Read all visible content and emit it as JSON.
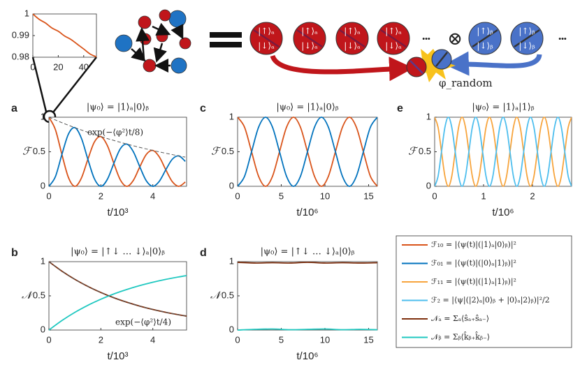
{
  "chart_data": [
    {
      "type": "line",
      "x": [
        0,
        5,
        10,
        15,
        20,
        25,
        30,
        35,
        40,
        45,
        50
      ],
      "series": [
        {
          "color": "#d95319",
          "values": [
            1,
            0.9975,
            0.9958,
            0.9935,
            0.992,
            0.9898,
            0.9882,
            0.986,
            0.9838,
            0.9815,
            0.9802
          ]
        }
      ],
      "xlim": [
        0,
        50
      ],
      "xticks": [
        0,
        20,
        40
      ],
      "ylim": [
        0.98,
        1
      ],
      "yticks": [
        0.98,
        0.99,
        1
      ]
    },
    {
      "type": "line",
      "label": "a",
      "title": "|ψ₀⟩ = |1⟩ₐ|0⟩ᵦ",
      "ylabel": "ℱ",
      "xlabel": "t/10³",
      "annotation": "exp(−⟨φ²⟩t/8)",
      "x": [
        0,
        0.25,
        0.5,
        0.75,
        1,
        1.25,
        1.5,
        1.75,
        2,
        2.25,
        2.5,
        2.75,
        3,
        3.25,
        3.5,
        3.75,
        4,
        4.25,
        4.5,
        4.75,
        5,
        5.25
      ],
      "series": [
        {
          "color": "#d95319",
          "values": [
            1,
            0.82,
            0.461,
            0.129,
            0,
            0.119,
            0.391,
            0.641,
            0.72,
            0.59,
            0.332,
            0.093,
            0,
            0.086,
            0.282,
            0.462,
            0.519,
            0.425,
            0.239,
            0.067,
            0,
            0.062
          ]
        },
        {
          "color": "#0072bd",
          "values": [
            0,
            0.14,
            0.461,
            0.755,
            0.849,
            0.696,
            0.391,
            0.11,
            0,
            0.101,
            0.332,
            0.544,
            0.611,
            0.501,
            0.282,
            0.079,
            0,
            0.073,
            0.239,
            0.392,
            0.44,
            0.361
          ]
        }
      ],
      "envelope": {
        "color": "#555555",
        "values": [
          1,
          0.96,
          0.921,
          0.884,
          0.849,
          0.815,
          0.782,
          0.751,
          0.72,
          0.691,
          0.664,
          0.637,
          0.611,
          0.587,
          0.563,
          0.541,
          0.519,
          0.498,
          0.478,
          0.459,
          0.44,
          0.423
        ]
      },
      "xlim": [
        0,
        5.3
      ],
      "xticks": [
        0,
        2,
        4
      ],
      "ylim": [
        0,
        1
      ],
      "yticks": [
        0,
        0.5,
        1
      ]
    },
    {
      "type": "line",
      "label": "b",
      "title": "|ψ₀⟩ = |↑↓ … ↓⟩ₐ|0⟩ᵦ",
      "ylabel": "𝒩",
      "xlabel": "t/10³",
      "annotation": "exp(−⟨φ²⟩t/4)",
      "x": [
        0,
        0.5,
        1,
        1.5,
        2,
        2.5,
        3,
        3.5,
        4,
        4.5,
        5,
        5.3
      ],
      "series": [
        {
          "color": "#7e2f0e",
          "values": [
            1,
            0.861,
            0.741,
            0.638,
            0.549,
            0.472,
            0.407,
            0.35,
            0.301,
            0.259,
            0.223,
            0.204
          ]
        },
        {
          "color": "#1fc8c0",
          "values": [
            0,
            0.139,
            0.259,
            0.362,
            0.451,
            0.528,
            0.593,
            0.65,
            0.699,
            0.741,
            0.777,
            0.796
          ]
        }
      ],
      "envelope": {
        "color": "#555555",
        "values": [
          1,
          0.861,
          0.741,
          0.638,
          0.549,
          0.472,
          0.407,
          0.35,
          0.301,
          0.259,
          0.223,
          0.204
        ]
      },
      "xlim": [
        0,
        5.3
      ],
      "xticks": [
        0,
        2,
        4
      ],
      "ylim": [
        0,
        1
      ],
      "yticks": [
        0,
        0.5,
        1
      ]
    },
    {
      "type": "line",
      "label": "c",
      "title": "|ψ₀⟩ = |1⟩ₐ|0⟩ᵦ",
      "ylabel": "ℱ",
      "xlabel": "t/10⁶",
      "x": [
        0,
        0.8,
        1.6,
        2.4,
        3.2,
        4,
        4.8,
        5.6,
        6.4,
        7.2,
        8,
        8.8,
        9.6,
        10.4,
        11.2,
        12,
        12.8,
        13.6,
        14.4,
        15.2,
        16
      ],
      "series": [
        {
          "color": "#d95319",
          "values": [
            1,
            0.854,
            0.5,
            0.146,
            0,
            0.146,
            0.5,
            0.854,
            1,
            0.854,
            0.5,
            0.146,
            0,
            0.146,
            0.5,
            0.854,
            1,
            0.854,
            0.5,
            0.146,
            0
          ]
        },
        {
          "color": "#0072bd",
          "values": [
            0,
            0.146,
            0.5,
            0.854,
            1,
            0.854,
            0.5,
            0.146,
            0,
            0.146,
            0.5,
            0.854,
            1,
            0.854,
            0.5,
            0.146,
            0,
            0.146,
            0.5,
            0.854,
            1
          ]
        }
      ],
      "xlim": [
        0,
        16
      ],
      "xticks": [
        0,
        5,
        10,
        15
      ],
      "ylim": [
        0,
        1
      ],
      "yticks": [
        0,
        0.5,
        1
      ]
    },
    {
      "type": "line",
      "label": "d",
      "title": "|ψ₀⟩ = |↑↓ … ↓⟩ₐ|0⟩ᵦ",
      "ylabel": "𝒩",
      "xlabel": "t/10⁶",
      "x": [
        0,
        2,
        4,
        6,
        8,
        10,
        12,
        14,
        16
      ],
      "series": [
        {
          "color": "#7e2f0e",
          "values": [
            0.99,
            0.98,
            0.985,
            0.98,
            0.99,
            0.98,
            0.985,
            0.98,
            0.985
          ]
        },
        {
          "color": "#1fc8c0",
          "values": [
            0,
            0.01,
            0.015,
            0.005,
            0.01,
            0.015,
            0.005,
            0.01,
            0.005
          ]
        }
      ],
      "xlim": [
        0,
        16
      ],
      "xticks": [
        0,
        5,
        10,
        15
      ],
      "ylim": [
        0,
        1
      ],
      "yticks": [
        0,
        0.5,
        1
      ]
    },
    {
      "type": "line",
      "label": "e",
      "title": "|ψ₀⟩ = |1⟩ₐ|1⟩ᵦ",
      "ylabel": "ℱ",
      "xlabel": "t/10⁶",
      "x": [
        0,
        0.07,
        0.14,
        0.21,
        0.28,
        0.35,
        0.42,
        0.49,
        0.56,
        0.63,
        0.7,
        0.77,
        0.84,
        0.91,
        0.98,
        1.05,
        1.12,
        1.19,
        1.26,
        1.33,
        1.4,
        1.47,
        1.54,
        1.61,
        1.68,
        1.75,
        1.82,
        1.89,
        1.96,
        2.03,
        2.1,
        2.17,
        2.24,
        2.31,
        2.38,
        2.45,
        2.52,
        2.59,
        2.66,
        2.73,
        2.8
      ],
      "series": [
        {
          "color": "#f7a43c",
          "values": [
            1,
            0.854,
            0.5,
            0.146,
            0,
            0.146,
            0.5,
            0.854,
            1,
            0.854,
            0.5,
            0.146,
            0,
            0.146,
            0.5,
            0.854,
            1,
            0.854,
            0.5,
            0.146,
            0,
            0.146,
            0.5,
            0.854,
            1,
            0.854,
            0.5,
            0.146,
            0,
            0.146,
            0.5,
            0.854,
            1,
            0.854,
            0.5,
            0.146,
            0,
            0.146,
            0.5,
            0.854,
            1
          ]
        },
        {
          "color": "#4dbeee",
          "values": [
            0,
            0.146,
            0.5,
            0.854,
            1,
            0.854,
            0.5,
            0.146,
            0,
            0.146,
            0.5,
            0.854,
            1,
            0.854,
            0.5,
            0.146,
            0,
            0.146,
            0.5,
            0.854,
            1,
            0.854,
            0.5,
            0.146,
            0,
            0.146,
            0.5,
            0.854,
            1,
            0.854,
            0.5,
            0.146,
            0,
            0.146,
            0.5,
            0.854,
            1,
            0.854,
            0.5,
            0.146,
            0
          ]
        }
      ],
      "xlim": [
        0,
        2.8
      ],
      "xticks": [
        0,
        1,
        2
      ],
      "ylim": [
        0,
        1
      ],
      "yticks": [
        0,
        0.5,
        1
      ]
    }
  ],
  "legend": {
    "entries": [
      {
        "label": "ℱ₁₀ = |⟨ψ(t)|(|1⟩ₐ|0⟩ᵦ)|²",
        "color": "#d95319"
      },
      {
        "label": "ℱ₀₁ = |⟨ψ(t)|(|0⟩ₐ|1⟩ᵦ)|²",
        "color": "#0072bd"
      },
      {
        "label": "ℱ₁₁ = |⟨ψ(t)|(|1⟩ₐ|1⟩ᵦ)|²",
        "color": "#f7a43c"
      },
      {
        "label": "ℱ₂ = |⟨ψ|(|2⟩ₐ|0⟩ᵦ + |0⟩ₐ|2⟩ᵦ)|²/2",
        "color": "#4dbeee"
      },
      {
        "label": "𝒩ₐ = Σₐ⟨ŝₐ₊ŝₐ₋⟩",
        "color": "#7e2f0e"
      },
      {
        "label": "𝒩ᵦ = Σᵦ⟨k̂ᵦ₊k̂ᵦ₋⟩",
        "color": "#1fc8c0"
      }
    ]
  },
  "diagram": {
    "red_spin": [
      "|↑⟩ₐ",
      "|↓⟩ₐ"
    ],
    "blue_spin": [
      "|↑⟩ᵦ",
      "|↓⟩ᵦ"
    ],
    "ellipsis": "•••",
    "tensor": "⊗",
    "phase": "φ_random"
  }
}
